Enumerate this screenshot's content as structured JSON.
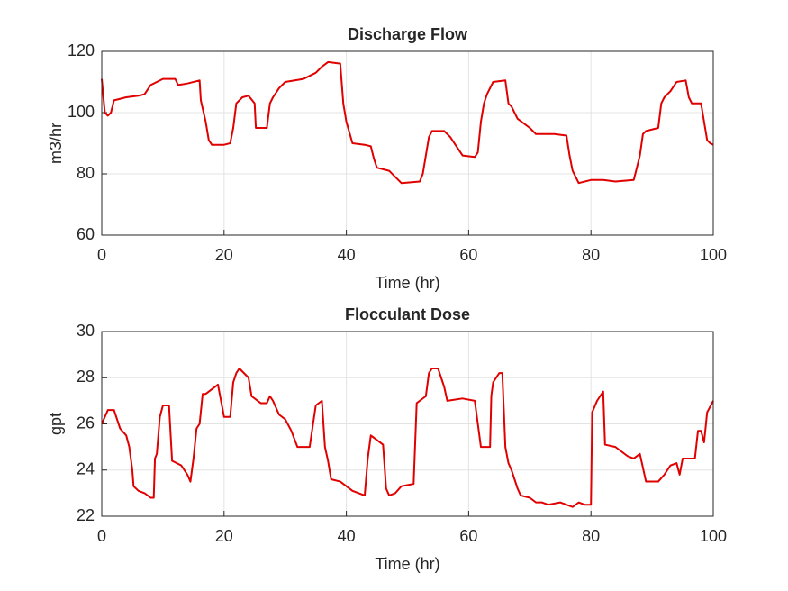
{
  "chart_data": [
    {
      "type": "line",
      "title": "Discharge Flow",
      "xlabel": "Time (hr)",
      "ylabel": "m3/hr",
      "color": "#e00000",
      "grid": true,
      "xlim": [
        0,
        100
      ],
      "xticks": [
        0,
        20,
        40,
        60,
        80,
        100
      ],
      "ylim": [
        60,
        120
      ],
      "yticks": [
        60,
        80,
        100,
        120
      ],
      "x": [
        0,
        0.5,
        1,
        1.5,
        2,
        4,
        6,
        7,
        8,
        10,
        12,
        12.5,
        14,
        16,
        16.2,
        17,
        17.5,
        18,
        20,
        21,
        21.5,
        22,
        23,
        24,
        25,
        25.2,
        27,
        27.5,
        28,
        29,
        30,
        33,
        34,
        35,
        36,
        37,
        39,
        39.5,
        40,
        41,
        43,
        44,
        44.5,
        45,
        47,
        48,
        49,
        52,
        52.5,
        53,
        53.5,
        54,
        56,
        57,
        58,
        59,
        61,
        61.5,
        62,
        62.5,
        63,
        64,
        66,
        66.5,
        67,
        68,
        70,
        71,
        74,
        76,
        76.5,
        77,
        78,
        80,
        82,
        84,
        87,
        87.5,
        88,
        88.5,
        89,
        91,
        91.5,
        92,
        93,
        94,
        95.5,
        96,
        96.5,
        98,
        99,
        99.5,
        100
      ],
      "values": [
        111,
        100,
        99,
        100,
        104,
        105,
        105.5,
        106,
        109,
        111,
        111,
        109,
        109.5,
        110.5,
        104,
        97,
        91,
        89.5,
        89.5,
        90,
        95,
        103,
        105,
        105.5,
        103,
        95,
        95,
        103,
        105,
        108,
        110,
        111,
        112,
        113,
        115,
        116.5,
        116,
        103,
        97,
        90,
        89.5,
        89,
        85,
        82,
        81,
        79,
        77,
        77.5,
        80,
        86,
        92,
        94,
        94,
        92,
        89,
        86,
        85.5,
        87,
        97,
        103,
        106,
        110,
        110.5,
        103,
        102,
        98,
        95,
        93,
        93,
        92.5,
        86,
        81,
        77,
        78,
        78,
        77.5,
        78,
        82,
        86,
        93,
        94,
        95,
        103,
        105,
        107,
        110,
        110.5,
        105,
        103,
        103,
        91,
        90,
        89.5
      ]
    },
    {
      "type": "line",
      "title": "Flocculant Dose",
      "xlabel": "Time (hr)",
      "ylabel": "gpt",
      "color": "#e00000",
      "grid": true,
      "xlim": [
        0,
        100
      ],
      "xticks": [
        0,
        20,
        40,
        60,
        80,
        100
      ],
      "ylim": [
        22,
        30
      ],
      "yticks": [
        22,
        24,
        26,
        28,
        30
      ],
      "x": [
        0,
        0.5,
        1,
        2,
        3,
        4,
        4.5,
        5,
        5.2,
        6,
        7,
        8,
        8.5,
        8.7,
        9,
        9.5,
        10,
        11,
        11.5,
        13,
        14,
        14.5,
        15,
        15.5,
        16,
        16.5,
        17,
        18,
        19,
        20,
        21,
        21.5,
        22,
        22.5,
        24,
        24.5,
        26,
        27,
        27.5,
        28,
        29,
        30,
        31,
        32,
        34,
        35,
        36,
        36.5,
        37,
        37.5,
        39,
        40,
        41,
        43,
        43.5,
        44,
        46,
        46.5,
        47,
        48,
        49,
        51,
        51.5,
        52,
        53,
        53.5,
        54,
        55,
        56,
        56.5,
        59,
        61,
        62,
        63.5,
        63.7,
        64,
        65,
        65.5,
        66,
        66.5,
        67,
        68,
        68.5,
        70,
        71,
        72,
        73,
        75,
        77,
        78,
        79,
        80,
        80.2,
        81,
        82,
        82.3,
        84,
        85,
        86,
        87,
        88,
        89,
        91,
        92,
        93,
        94,
        94.5,
        95,
        97,
        97.5,
        98,
        98.5,
        99,
        100
      ],
      "values": [
        26,
        26.3,
        26.6,
        26.6,
        25.8,
        25.5,
        25,
        24,
        23.3,
        23.1,
        23,
        22.8,
        22.8,
        24.5,
        24.7,
        26.3,
        26.8,
        26.8,
        24.4,
        24.2,
        23.8,
        23.5,
        24.5,
        25.8,
        26,
        27.3,
        27.3,
        27.5,
        27.7,
        26.3,
        26.3,
        27.8,
        28.2,
        28.4,
        28,
        27.2,
        26.9,
        26.9,
        27.2,
        27,
        26.4,
        26.2,
        25.7,
        25,
        25,
        26.8,
        27,
        25,
        24.4,
        23.6,
        23.5,
        23.3,
        23.1,
        22.9,
        24.5,
        25.5,
        25.1,
        23.2,
        22.9,
        23,
        23.3,
        23.4,
        26.9,
        27,
        27.2,
        28.2,
        28.4,
        28.4,
        27.6,
        27,
        27.1,
        27,
        25,
        25,
        27.2,
        27.8,
        28.2,
        28.2,
        25,
        24.3,
        24,
        23.2,
        22.9,
        22.8,
        22.6,
        22.6,
        22.5,
        22.6,
        22.4,
        22.6,
        22.5,
        22.5,
        26.5,
        27,
        27.4,
        25.1,
        25,
        24.8,
        24.6,
        24.5,
        24.7,
        23.5,
        23.5,
        23.8,
        24.2,
        24.3,
        23.8,
        24.5,
        24.5,
        25.7,
        25.7,
        25.2,
        26.5,
        27
      ]
    }
  ]
}
